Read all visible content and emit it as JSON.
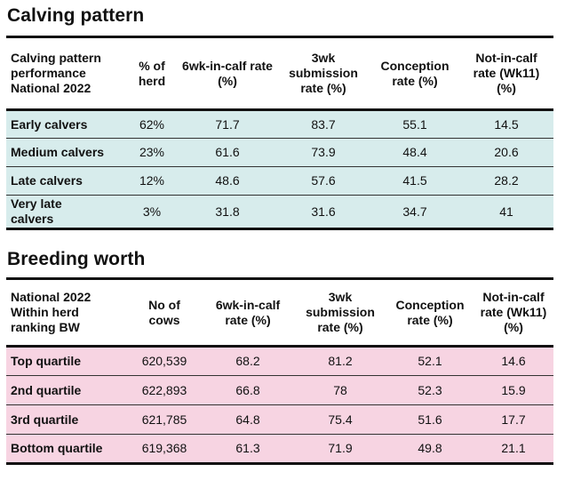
{
  "calving": {
    "title": "Calving pattern",
    "headers": [
      "Calving pattern performance National 2022",
      "% of herd",
      "6wk-in-calf rate (%)",
      "3wk submission rate (%)",
      "Conception rate (%)",
      "Not-in-calf rate (Wk11) (%)"
    ],
    "rows": [
      [
        "Early calvers",
        "62%",
        "71.7",
        "83.7",
        "55.1",
        "14.5"
      ],
      [
        "Medium calvers",
        "23%",
        "61.6",
        "73.9",
        "48.4",
        "20.6"
      ],
      [
        "Late calvers",
        "12%",
        "48.6",
        "57.6",
        "41.5",
        "28.2"
      ],
      [
        "Very late calvers",
        "3%",
        "31.8",
        "31.6",
        "34.7",
        "41"
      ]
    ]
  },
  "breeding": {
    "title": "Breeding worth",
    "headers": [
      "National 2022 Within herd ranking BW",
      "No of cows",
      "6wk-in-calf rate (%)",
      "3wk submission rate (%)",
      "Conception rate (%)",
      "Not-in-calf rate (Wk11) (%)"
    ],
    "rows": [
      [
        "Top quartile",
        "620,539",
        "68.2",
        "81.2",
        "52.1",
        "14.6"
      ],
      [
        "2nd quartile",
        "622,893",
        "66.8",
        "78",
        "52.3",
        "15.9"
      ],
      [
        "3rd quartile",
        "621,785",
        "64.8",
        "75.4",
        "51.6",
        "17.7"
      ],
      [
        "Bottom quartile",
        "619,368",
        "61.3",
        "71.9",
        "49.8",
        "21.1"
      ]
    ]
  }
}
